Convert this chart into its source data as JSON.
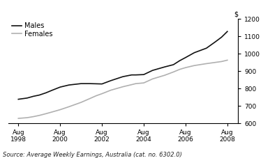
{
  "source_text": "Source: Average Weekly Earnings, Australia (cat. no. 6302.0)",
  "ylabel": "$",
  "ylim": [
    600,
    1200
  ],
  "yticks": [
    600,
    700,
    800,
    900,
    1000,
    1100,
    1200
  ],
  "xtick_labels": [
    [
      "Aug",
      "1998"
    ],
    [
      "Aug",
      "2000"
    ],
    [
      "Aug",
      "2002"
    ],
    [
      "Aug",
      "2004"
    ],
    [
      "Aug",
      "2006"
    ],
    [
      "Aug",
      "2008"
    ]
  ],
  "xtick_positions": [
    1998.58,
    2000.58,
    2002.58,
    2004.58,
    2006.58,
    2008.58
  ],
  "xlim": [
    1998.1,
    2009.1
  ],
  "males_x": [
    1998.58,
    1999.0,
    1999.3,
    1999.58,
    1999.9,
    2000.2,
    2000.58,
    2001.0,
    2001.58,
    2002.0,
    2002.3,
    2002.58,
    2003.0,
    2003.58,
    2004.0,
    2004.2,
    2004.58,
    2005.0,
    2005.58,
    2006.0,
    2006.3,
    2006.58,
    2007.0,
    2007.58,
    2008.0,
    2008.3,
    2008.58
  ],
  "males_y": [
    738,
    745,
    755,
    762,
    775,
    790,
    808,
    820,
    828,
    828,
    827,
    826,
    845,
    868,
    878,
    878,
    880,
    904,
    924,
    937,
    960,
    978,
    1006,
    1032,
    1068,
    1095,
    1128
  ],
  "females_x": [
    1998.58,
    1999.0,
    1999.3,
    1999.58,
    1999.9,
    2000.2,
    2000.58,
    2001.0,
    2001.58,
    2002.0,
    2002.3,
    2002.58,
    2003.0,
    2003.58,
    2004.0,
    2004.2,
    2004.58,
    2005.0,
    2005.58,
    2006.0,
    2006.3,
    2006.58,
    2007.0,
    2007.58,
    2008.0,
    2008.3,
    2008.58
  ],
  "females_y": [
    628,
    632,
    638,
    645,
    655,
    665,
    678,
    695,
    720,
    742,
    758,
    770,
    790,
    810,
    822,
    828,
    832,
    855,
    876,
    895,
    910,
    920,
    932,
    943,
    950,
    955,
    963
  ],
  "males_color": "#111111",
  "females_color": "#b0b0b0",
  "line_width": 1.2,
  "legend_males": "Males",
  "legend_females": "Females",
  "bg_color": "#ffffff",
  "source_fontsize": 6.0,
  "legend_fontsize": 7.0,
  "tick_fontsize": 6.5,
  "ylabel_fontsize": 7.0
}
